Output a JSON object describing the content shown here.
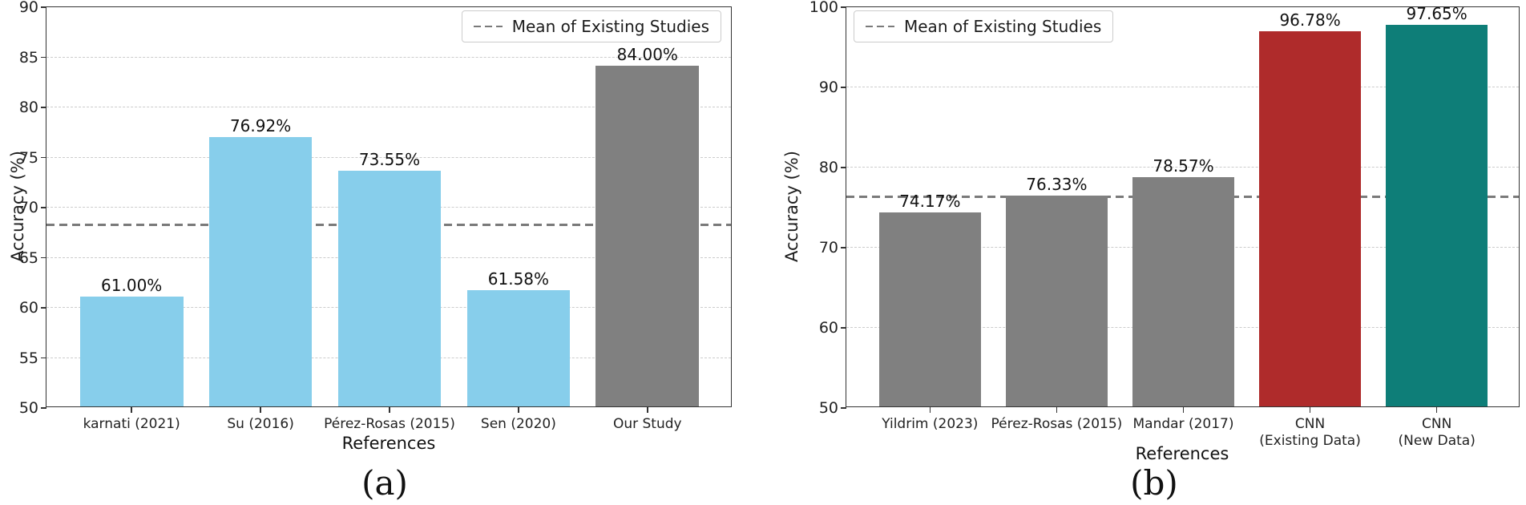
{
  "chart_data": [
    {
      "type": "bar",
      "caption": "(a)",
      "xlabel": "References",
      "ylabel": "Accuracy (%)",
      "ylim": [
        50,
        90
      ],
      "yticks": [
        50,
        55,
        60,
        65,
        70,
        75,
        80,
        85,
        90
      ],
      "grid": "horizontal-dashed",
      "categories": [
        "karnati (2021)",
        "Su (2016)",
        "Pérez-Rosas (2015)",
        "Sen (2020)",
        "Our Study"
      ],
      "values": [
        61.0,
        76.92,
        73.55,
        61.58,
        84.0
      ],
      "value_labels": [
        "61.00%",
        "76.92%",
        "73.55%",
        "61.58%",
        "84.00%"
      ],
      "bar_colors": [
        "#87CEEB",
        "#87CEEB",
        "#87CEEB",
        "#87CEEB",
        "#808080"
      ],
      "mean_line": {
        "value": 68.26,
        "label": "Mean of Existing Studies",
        "style": "dashed",
        "color": "#7a7a7a"
      },
      "legend_position": "top-right"
    },
    {
      "type": "bar",
      "caption": "(b)",
      "xlabel": "References",
      "ylabel": "Accuracy (%)",
      "ylim": [
        50,
        100
      ],
      "yticks": [
        50,
        60,
        70,
        80,
        90,
        100
      ],
      "grid": "horizontal-dashed",
      "categories": [
        "Yildrim (2023)",
        "Pérez-Rosas (2015)",
        "Mandar (2017)",
        "CNN\n(Existing Data)",
        "CNN\n(New Data)"
      ],
      "values": [
        74.17,
        76.33,
        78.57,
        96.78,
        97.65
      ],
      "value_labels": [
        "74.17%",
        "76.33%",
        "78.57%",
        "96.78%",
        "97.65%"
      ],
      "bar_colors": [
        "#808080",
        "#808080",
        "#808080",
        "#AF2B2B",
        "#0E7E78"
      ],
      "mean_line": {
        "value": 76.36,
        "label": "Mean of Existing Studies",
        "style": "dashed",
        "color": "#7a7a7a"
      },
      "legend_position": "top-left"
    }
  ]
}
